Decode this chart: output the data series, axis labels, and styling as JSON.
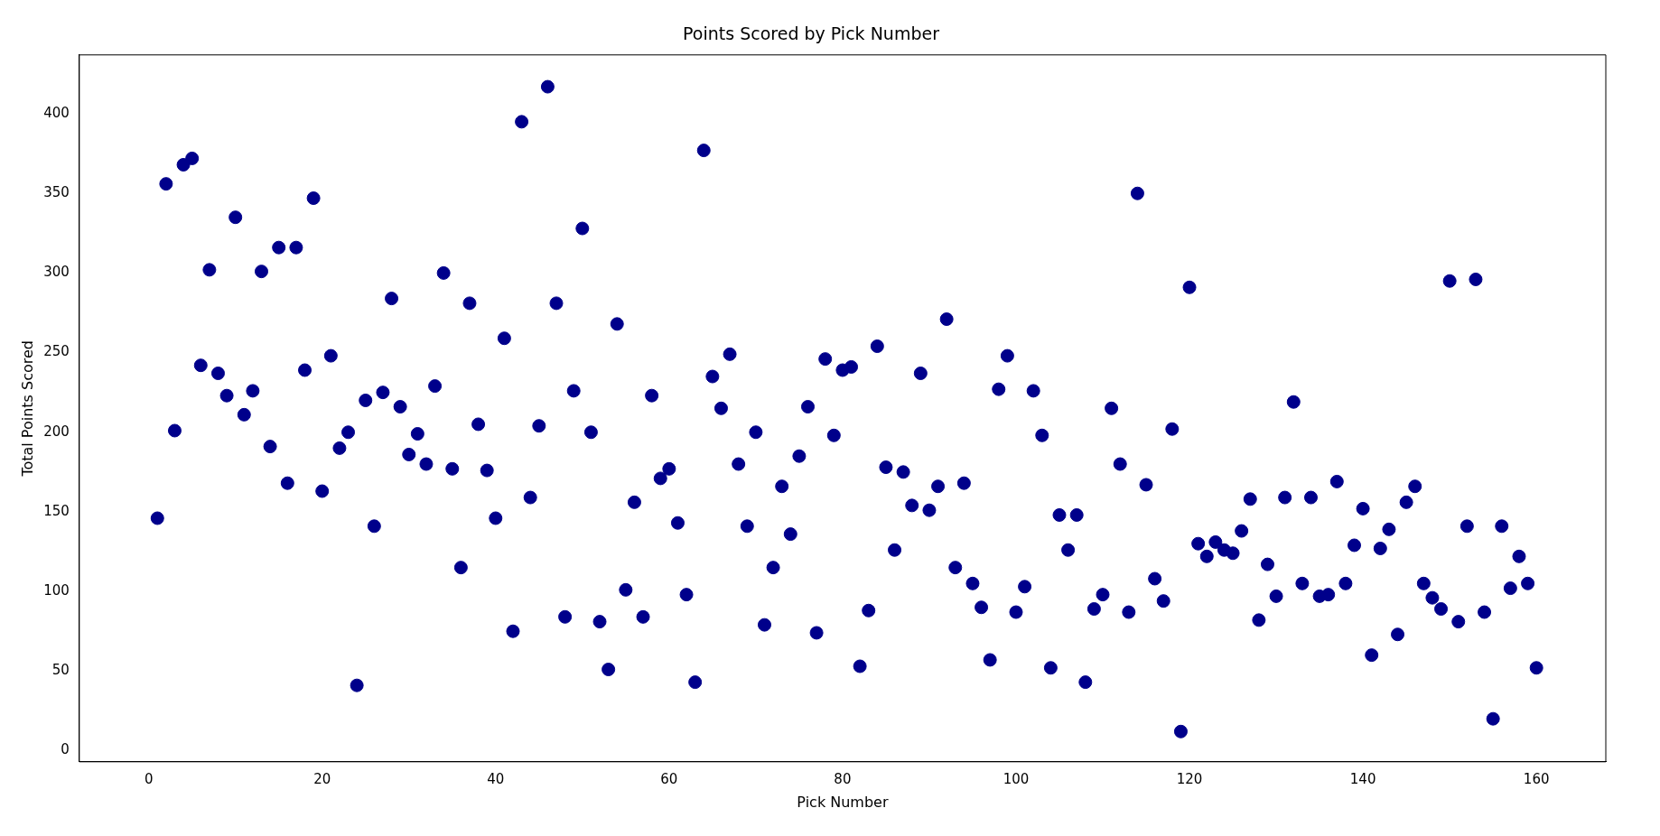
{
  "chart_data": {
    "type": "scatter",
    "title": "Points Scored by Pick Number",
    "xlabel": "Pick Number",
    "ylabel": "Total Points Scored",
    "x": [
      1,
      2,
      3,
      4,
      5,
      6,
      7,
      8,
      9,
      10,
      11,
      12,
      13,
      14,
      15,
      16,
      17,
      18,
      19,
      20,
      21,
      22,
      23,
      24,
      25,
      26,
      27,
      28,
      29,
      30,
      31,
      32,
      33,
      34,
      35,
      36,
      37,
      38,
      39,
      40,
      41,
      42,
      43,
      44,
      45,
      46,
      47,
      48,
      49,
      50,
      51,
      52,
      53,
      54,
      55,
      56,
      57,
      58,
      59,
      60,
      61,
      62,
      63,
      64,
      65,
      66,
      67,
      68,
      69,
      70,
      71,
      72,
      73,
      74,
      75,
      76,
      77,
      78,
      79,
      80,
      81,
      82,
      83,
      84,
      85,
      86,
      87,
      88,
      89,
      90,
      91,
      92,
      93,
      94,
      95,
      96,
      97,
      98,
      99,
      100,
      101,
      102,
      103,
      104,
      105,
      106,
      107,
      108,
      109,
      110,
      111,
      112,
      113,
      114,
      115,
      116,
      117,
      118,
      119,
      120,
      121,
      122,
      123,
      124,
      125,
      126,
      127,
      128,
      129,
      130,
      131,
      132,
      133,
      134,
      135,
      136,
      137,
      138,
      139,
      140,
      141,
      142,
      143,
      144,
      145,
      146,
      147,
      148,
      149,
      150,
      151,
      152,
      153,
      154,
      155,
      156,
      157,
      158,
      159,
      160
    ],
    "series": [
      {
        "color": "#00008b",
        "values": [
          146,
          356,
          201,
          368,
          372,
          242,
          302,
          237,
          223,
          335,
          211,
          226,
          301,
          191,
          316,
          168,
          316,
          239,
          347,
          163,
          248,
          190,
          200,
          41,
          220,
          141,
          225,
          284,
          216,
          186,
          199,
          180,
          229,
          300,
          177,
          115,
          281,
          205,
          176,
          146,
          259,
          75,
          395,
          159,
          204,
          417,
          281,
          84,
          226,
          328,
          200,
          81,
          51,
          268,
          101,
          156,
          84,
          223,
          171,
          177,
          143,
          98,
          43,
          377,
          235,
          215,
          249,
          180,
          141,
          200,
          79,
          115,
          166,
          136,
          185,
          216,
          74,
          246,
          198,
          239,
          241,
          53,
          88,
          254,
          178,
          126,
          175,
          154,
          237,
          151,
          166,
          271,
          115,
          168,
          105,
          90,
          57,
          227,
          248,
          87,
          103,
          226,
          198,
          52,
          148,
          126,
          148,
          43,
          89,
          98,
          215,
          180,
          87,
          350,
          167,
          108,
          94,
          202,
          12,
          291,
          130,
          122,
          131,
          126,
          124,
          138,
          158,
          82,
          117,
          97,
          159,
          219,
          105,
          159,
          97,
          98,
          169,
          105,
          129,
          152,
          60,
          127,
          139,
          73,
          156,
          166,
          105,
          96,
          89,
          295,
          81,
          141,
          296,
          87,
          20,
          141,
          102,
          122,
          105,
          52
        ]
      }
    ],
    "xlim": [
      -8,
      168
    ],
    "ylim": [
      -7,
      437
    ],
    "xticks": [
      0,
      20,
      40,
      60,
      80,
      100,
      120,
      140,
      160
    ],
    "yticks": [
      0,
      50,
      100,
      150,
      200,
      250,
      300,
      350,
      400
    ],
    "grid": false,
    "legend": false,
    "marker": "circle"
  }
}
